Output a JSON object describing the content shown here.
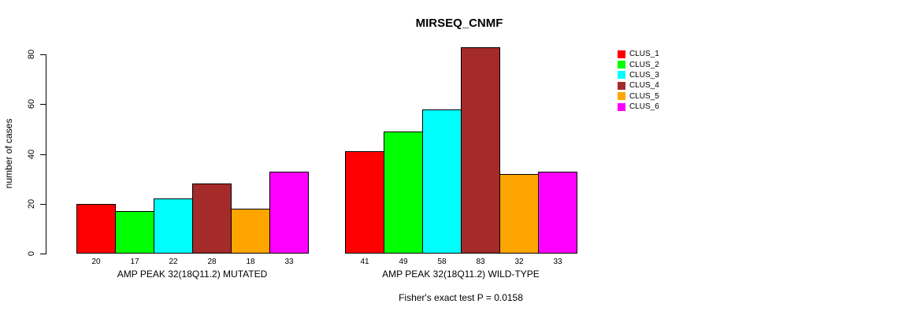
{
  "chart_data": {
    "type": "bar",
    "title": "MIRSEQ_CNMF",
    "ylabel": "number of cases",
    "xlabel": "",
    "yticks": [
      0,
      20,
      40,
      60,
      80
    ],
    "ylim": [
      0,
      85
    ],
    "grid": false,
    "legend_position": "right",
    "background": "#FFFFFF",
    "axis_color": "#000000",
    "categories": [
      "AMP PEAK 32(18Q11.2) MUTATED",
      "AMP PEAK 32(18Q11.2) WILD-TYPE"
    ],
    "series": [
      {
        "name": "CLUS_1",
        "color": "#FF0000",
        "values": [
          20,
          41
        ]
      },
      {
        "name": "CLUS_2",
        "color": "#00FF00",
        "values": [
          17,
          49
        ]
      },
      {
        "name": "CLUS_3",
        "color": "#00FFFF",
        "values": [
          22,
          58
        ]
      },
      {
        "name": "CLUS_4",
        "color": "#A52A2A",
        "values": [
          28,
          83
        ]
      },
      {
        "name": "CLUS_5",
        "color": "#FFA500",
        "values": [
          18,
          32
        ]
      },
      {
        "name": "CLUS_6",
        "color": "#FF00FF",
        "values": [
          33,
          33
        ]
      }
    ],
    "bar_value_labels": [
      [
        20,
        17,
        22,
        28,
        18,
        33
      ],
      [
        41,
        49,
        58,
        83,
        32,
        33
      ]
    ],
    "annotation": "Fisher's exact test P = 0.0158"
  }
}
